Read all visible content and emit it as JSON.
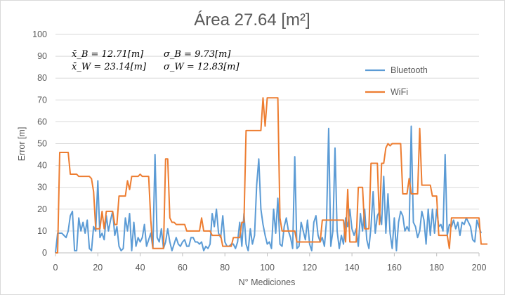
{
  "chart_data": {
    "type": "line",
    "title": "Área 27.64 [m²]",
    "xlabel": "N° Mediciones",
    "ylabel": "Error [m]",
    "xlim": [
      0,
      200
    ],
    "ylim": [
      0,
      100
    ],
    "x_ticks": [
      "0",
      "20",
      "40",
      "60",
      "80",
      "100",
      "120",
      "140",
      "160",
      "180",
      "200"
    ],
    "y_ticks": [
      "0",
      "10",
      "20",
      "30",
      "40",
      "50",
      "60",
      "70",
      "80",
      "90",
      "100"
    ],
    "grid": true,
    "legend_position": "right",
    "stats": [
      "x̄_B = 12.71[m]",
      "σ_B = 9.73[m]",
      "x̄_W = 23.14[m]",
      "σ_W = 12.83[m]"
    ],
    "series": [
      {
        "name": "Bluetooth",
        "color": "#5b9bd5",
        "values": [
          0,
          9,
          9,
          9,
          8,
          7,
          10,
          17,
          19,
          1,
          1,
          16,
          10,
          14,
          9,
          15,
          2,
          1,
          12,
          10,
          33,
          7,
          9,
          6,
          17,
          10,
          15,
          19,
          8,
          12,
          3,
          1,
          2,
          16,
          10,
          18,
          1,
          14,
          3,
          7,
          5,
          7,
          13,
          3,
          6,
          9,
          2,
          45,
          7,
          5,
          11,
          2,
          5,
          11,
          5,
          1,
          4,
          7,
          4,
          3,
          5,
          6,
          3,
          3,
          7,
          7,
          5,
          5,
          4,
          5,
          1,
          3,
          2,
          4,
          18,
          12,
          20,
          9,
          7,
          17,
          5,
          3,
          3,
          4,
          4,
          2,
          5,
          14,
          3,
          18,
          4,
          1,
          11,
          4,
          8,
          31,
          43,
          20,
          13,
          8,
          4,
          5,
          2,
          20,
          9,
          25,
          4,
          3,
          12,
          16,
          10,
          7,
          2,
          44,
          2,
          3,
          14,
          10,
          6,
          15,
          4,
          1,
          14,
          17,
          8,
          5,
          7,
          3,
          15,
          57,
          3,
          10,
          48,
          10,
          2,
          8,
          4,
          16,
          12,
          20,
          11,
          8,
          11,
          3,
          18,
          10,
          20,
          6,
          2,
          12,
          28,
          9,
          17,
          19,
          13,
          35,
          9,
          27,
          9,
          2,
          16,
          1,
          14,
          19,
          17,
          10,
          12,
          10,
          58,
          14,
          12,
          7,
          10,
          19,
          15,
          4,
          20,
          8,
          20,
          9,
          20,
          12,
          13,
          10,
          45,
          8,
          13,
          12,
          15,
          11,
          14,
          8,
          14,
          13,
          16,
          14,
          12,
          6,
          5,
          15,
          12,
          9
        ],
        "x_start": 0
      },
      {
        "name": "WiFi",
        "color": "#ed7d31",
        "values": [
          0,
          0,
          46,
          46,
          46,
          46,
          46,
          36,
          36,
          36,
          36,
          35,
          35,
          35,
          35,
          35,
          35,
          34,
          28,
          11,
          11,
          11,
          19,
          11,
          19,
          19,
          19,
          19,
          13,
          13,
          26,
          26,
          26,
          26,
          33,
          29,
          35,
          35,
          35,
          35,
          36,
          35,
          35,
          35,
          35,
          15,
          2,
          2,
          2,
          2,
          2,
          2,
          43,
          43,
          16,
          14,
          14,
          13,
          13,
          13,
          13,
          13,
          10,
          10,
          10,
          10,
          10,
          10,
          10,
          16,
          10,
          10,
          10,
          10,
          8,
          8,
          8,
          8,
          8,
          3,
          3,
          3,
          3,
          3,
          7,
          7,
          7,
          7,
          14,
          14,
          56,
          56,
          56,
          56,
          56,
          56,
          56,
          56,
          71,
          58,
          71,
          71,
          71,
          71,
          71,
          71,
          16,
          10,
          10,
          10,
          10,
          10,
          10,
          10,
          5,
          5,
          5,
          5,
          5,
          5,
          5,
          5,
          5,
          5,
          5,
          5,
          15,
          15,
          15,
          15,
          15,
          15,
          15,
          15,
          15,
          15,
          15,
          5,
          29,
          5,
          5,
          5,
          5,
          30,
          30,
          30,
          11,
          11,
          11,
          41,
          41,
          41,
          41,
          13,
          41,
          41,
          48,
          50,
          49,
          50,
          50,
          50,
          50,
          50,
          27,
          27,
          27,
          34,
          27,
          27,
          27,
          27,
          57,
          31,
          31,
          31,
          31,
          31,
          26,
          26,
          26,
          8,
          8,
          8,
          8,
          8,
          2,
          16,
          16,
          16,
          16,
          16,
          16,
          16,
          16,
          16,
          16,
          16,
          16,
          16,
          16,
          4,
          4,
          4,
          4
        ],
        "x_start": 0
      }
    ]
  }
}
